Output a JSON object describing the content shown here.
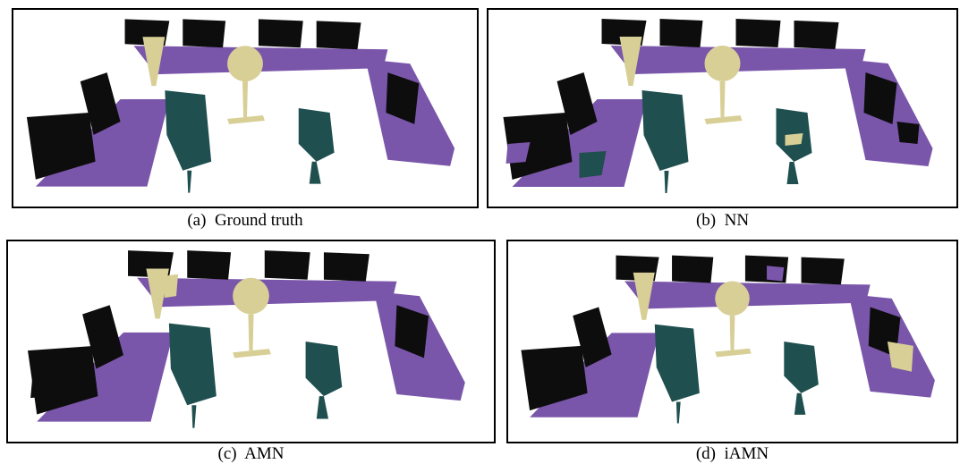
{
  "colors": {
    "table": "#7a56aa",
    "chair": "#1f4f4f",
    "wall_clutter": "#0d0d0d",
    "lamp": "#d8cf96",
    "background": "#ffffff"
  },
  "panels": [
    {
      "id": "a",
      "label": "(a)",
      "name": "Ground truth",
      "noise": 0.0
    },
    {
      "id": "b",
      "label": "(b)",
      "name": "NN",
      "noise": 0.55
    },
    {
      "id": "c",
      "label": "(c)",
      "name": "AMN",
      "noise": 0.3
    },
    {
      "id": "d",
      "label": "(d)",
      "name": "iAMN",
      "noise": 0.2
    }
  ]
}
